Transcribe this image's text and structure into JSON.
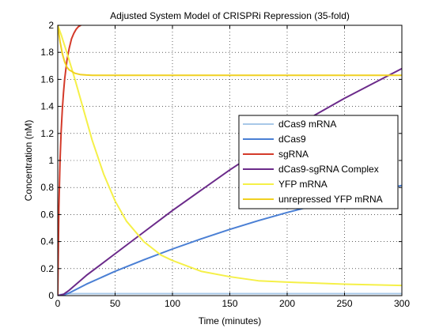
{
  "chart_data": {
    "type": "line",
    "title": "Adjusted System Model of CRISPRi Repression (35-fold)",
    "xlabel": "Time (minutes)",
    "ylabel": "Concentration (nM)",
    "xlim": [
      0,
      300
    ],
    "ylim": [
      0,
      2
    ],
    "xticks": [
      0,
      50,
      100,
      150,
      200,
      250,
      300
    ],
    "yticks": [
      0,
      0.2,
      0.4,
      0.6,
      0.8,
      1,
      1.2,
      1.4,
      1.6,
      1.8,
      2
    ],
    "grid": "dotted",
    "legend_position": "right",
    "series": [
      {
        "name": "dCas9 mRNA",
        "color": "#a8c8e8",
        "x": [
          0,
          2,
          5,
          10,
          20,
          50,
          100,
          150,
          200,
          250,
          300
        ],
        "y": [
          0,
          0.008,
          0.012,
          0.014,
          0.015,
          0.015,
          0.015,
          0.015,
          0.015,
          0.015,
          0.015
        ]
      },
      {
        "name": "dCas9",
        "color": "#4a7fd4",
        "x": [
          0,
          5,
          10,
          25,
          50,
          75,
          100,
          125,
          150,
          175,
          200,
          225,
          250,
          275,
          300
        ],
        "y": [
          0,
          0.004,
          0.02,
          0.085,
          0.18,
          0.265,
          0.345,
          0.42,
          0.49,
          0.555,
          0.615,
          0.67,
          0.72,
          0.77,
          0.815
        ]
      },
      {
        "name": "sgRNA",
        "color": "#d43a2a",
        "x": [
          0,
          1,
          2,
          3,
          4,
          5,
          6,
          8,
          10,
          12,
          14,
          16,
          18,
          20
        ],
        "y": [
          0,
          0.65,
          1.0,
          1.22,
          1.38,
          1.5,
          1.6,
          1.74,
          1.83,
          1.9,
          1.94,
          1.97,
          1.99,
          2.0
        ]
      },
      {
        "name": "dCas9-sgRNA Complex",
        "color": "#6b2a8a",
        "x": [
          0,
          5,
          10,
          25,
          50,
          75,
          100,
          125,
          150,
          175,
          200,
          225,
          250,
          275,
          300
        ],
        "y": [
          0,
          0.01,
          0.04,
          0.15,
          0.31,
          0.47,
          0.63,
          0.78,
          0.93,
          1.07,
          1.21,
          1.34,
          1.46,
          1.57,
          1.68
        ]
      },
      {
        "name": "YFP mRNA",
        "color": "#f5f048",
        "x": [
          0,
          3,
          6,
          10,
          15,
          20,
          25,
          30,
          40,
          50,
          60,
          75,
          90,
          100,
          125,
          150,
          175,
          200,
          250,
          300
        ],
        "y": [
          2.0,
          1.93,
          1.85,
          1.74,
          1.6,
          1.45,
          1.3,
          1.15,
          0.9,
          0.7,
          0.55,
          0.4,
          0.3,
          0.26,
          0.18,
          0.14,
          0.11,
          0.1,
          0.085,
          0.075
        ]
      },
      {
        "name": "unrepressed YFP mRNA",
        "color": "#f0d020",
        "x": [
          0,
          2,
          4,
          6,
          8,
          10,
          15,
          20,
          25,
          30,
          40,
          60,
          100,
          300
        ],
        "y": [
          2.0,
          1.88,
          1.79,
          1.73,
          1.69,
          1.67,
          1.645,
          1.635,
          1.632,
          1.63,
          1.63,
          1.63,
          1.63,
          1.63
        ]
      }
    ]
  }
}
